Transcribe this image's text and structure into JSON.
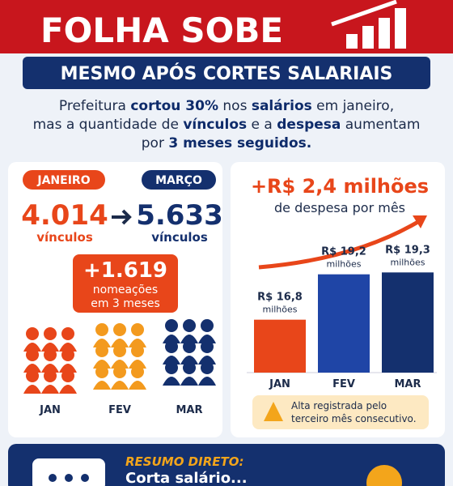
{
  "header": {
    "title": "FOLHA SOBE",
    "banner": "MESMO APÓS CORTES SALARIAIS"
  },
  "intro": [
    [
      {
        "text": "Prefeitura "
      },
      {
        "text": "cortou 30%",
        "bold": true
      },
      {
        "text": " nos "
      },
      {
        "text": "salários",
        "bold": true
      },
      {
        "text": " em janeiro,"
      }
    ],
    [
      {
        "text": "mas a quantidade de "
      },
      {
        "text": "vínculos",
        "bold": true
      },
      {
        "text": " e a "
      },
      {
        "text": "despesa",
        "bold": true
      },
      {
        "text": " aumentam"
      }
    ],
    [
      {
        "text": "por "
      },
      {
        "text": "3 meses seguidos.",
        "bold": true
      }
    ]
  ],
  "left": {
    "from_label": "JANEIRO",
    "to_label": "MARÇO",
    "from_value": "4.014",
    "to_value": "5.633",
    "unit": "vínculos",
    "delta": "+1.619",
    "delta_text": [
      "nomeações",
      "em 3 meses"
    ],
    "months": [
      "JAN",
      "FEV",
      "MAR"
    ]
  },
  "chart_data": {
    "type": "bar",
    "title": "+R$ 2,4 milhões",
    "subtitle": "de despesa por mês",
    "categories": [
      "JAN",
      "FEV",
      "MAR"
    ],
    "values": [
      16.8,
      19.2,
      19.3
    ],
    "value_labels": [
      [
        "R$ 16,8",
        "milhões"
      ],
      [
        "R$ 19,2",
        "milhões"
      ],
      [
        "R$ 19,3",
        "milhões"
      ]
    ],
    "colors": [
      "#e8461a",
      "#1f45a6",
      "#14306e"
    ],
    "ylim": [
      14,
      20
    ],
    "note": [
      "Alta registrada pelo",
      "terceiro mês consecutivo."
    ]
  },
  "footer": {
    "label": "RESUMO DIRETO:",
    "text": "Corta salário..."
  }
}
